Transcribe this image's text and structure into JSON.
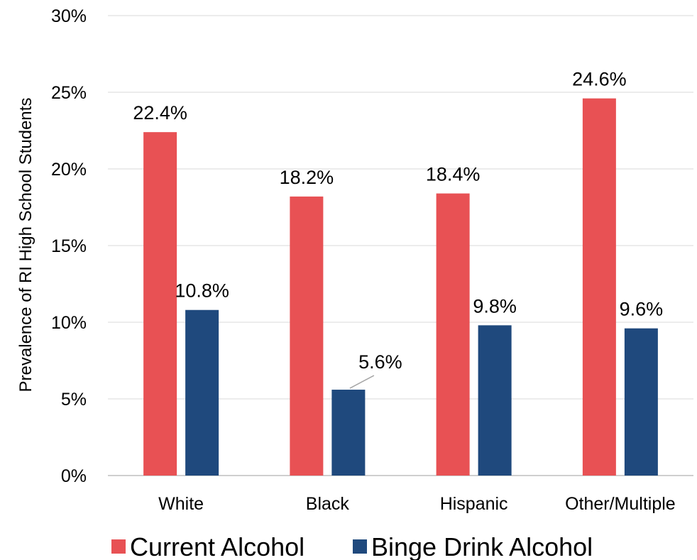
{
  "chart_data": {
    "type": "bar",
    "title": "",
    "xlabel": "",
    "ylabel": "Prevalence of RI High School Students",
    "categories": [
      "White",
      "Black",
      "Hispanic",
      "Other/Multiple"
    ],
    "series": [
      {
        "name": "Current Alcohol",
        "color": "#E85154",
        "values": [
          22.4,
          18.2,
          18.4,
          24.6
        ],
        "labels": [
          "22.4%",
          "18.2%",
          "18.4%",
          "24.6%"
        ]
      },
      {
        "name": "Binge Drink Alcohol",
        "color": "#1F497D",
        "values": [
          10.8,
          5.6,
          9.8,
          9.6
        ],
        "labels": [
          "10.8%",
          "5.6%",
          "9.8%",
          "9.6%"
        ]
      }
    ],
    "ylim": [
      0,
      30
    ],
    "yticks": [
      "0%",
      "5%",
      "10%",
      "15%",
      "20%",
      "25%",
      "30%"
    ],
    "grid": true,
    "legend_position": "bottom"
  }
}
